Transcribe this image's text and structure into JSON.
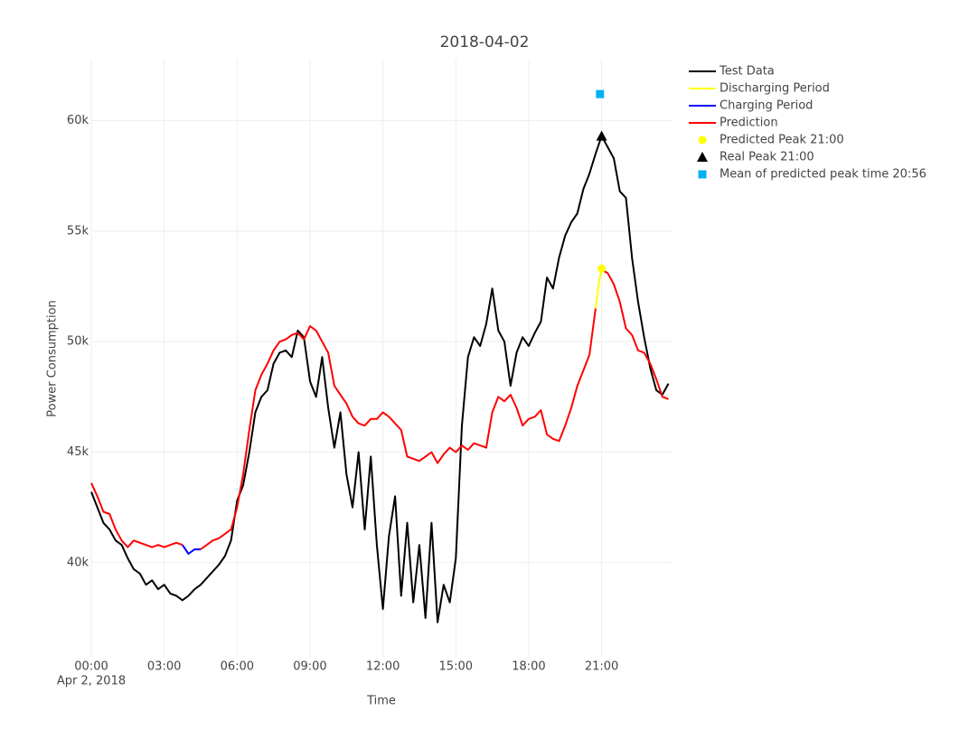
{
  "chart_data": {
    "type": "line",
    "title": "2018-04-02",
    "x_label": "Time",
    "y_label": "Power Consumption",
    "x_date_label": "Apr 2, 2018",
    "xlim": [
      "00:00",
      "23:55"
    ],
    "xticks": [
      "00:00",
      "03:00",
      "06:00",
      "09:00",
      "12:00",
      "15:00",
      "18:00",
      "21:00"
    ],
    "ylim": [
      35700,
      62800
    ],
    "yticks": [
      {
        "value": 40000,
        "label": "40k"
      },
      {
        "value": 45000,
        "label": "45k"
      },
      {
        "value": 50000,
        "label": "50k"
      },
      {
        "value": 55000,
        "label": "55k"
      },
      {
        "value": 60000,
        "label": "60k"
      }
    ],
    "grid": true,
    "legend": "top-right",
    "series": [
      {
        "name": "Test Data",
        "color": "#000000",
        "mode": "lines",
        "x": [
          "00:00",
          "00:15",
          "00:30",
          "00:45",
          "01:00",
          "01:15",
          "01:30",
          "01:45",
          "02:00",
          "02:15",
          "02:30",
          "02:45",
          "03:00",
          "03:15",
          "03:30",
          "03:45",
          "04:00",
          "04:15",
          "04:30",
          "04:45",
          "05:00",
          "05:15",
          "05:30",
          "05:45",
          "06:00",
          "06:15",
          "06:30",
          "06:45",
          "07:00",
          "07:15",
          "07:30",
          "07:45",
          "08:00",
          "08:15",
          "08:30",
          "08:45",
          "09:00",
          "09:15",
          "09:30",
          "09:45",
          "10:00",
          "10:15",
          "10:30",
          "10:45",
          "11:00",
          "11:15",
          "11:30",
          "11:45",
          "12:00",
          "12:15",
          "12:30",
          "12:45",
          "13:00",
          "13:15",
          "13:30",
          "13:45",
          "14:00",
          "14:15",
          "14:30",
          "14:45",
          "15:00",
          "15:15",
          "15:30",
          "15:45",
          "16:00",
          "16:15",
          "16:30",
          "16:45",
          "17:00",
          "17:15",
          "17:30",
          "17:45",
          "18:00",
          "18:15",
          "18:30",
          "18:45",
          "19:00",
          "19:15",
          "19:30",
          "19:45",
          "20:00",
          "20:15",
          "20:30",
          "20:45",
          "21:00",
          "21:15",
          "21:30",
          "21:45",
          "22:00",
          "22:15",
          "22:30",
          "22:45",
          "23:00",
          "23:15",
          "23:30",
          "23:45"
        ],
        "values": [
          43200,
          42500,
          41800,
          41500,
          41000,
          40800,
          40200,
          39700,
          39500,
          39000,
          39200,
          38800,
          39000,
          38600,
          38500,
          38300,
          38500,
          38800,
          39000,
          39300,
          39600,
          39900,
          40300,
          41000,
          42800,
          43500,
          45000,
          46800,
          47500,
          47800,
          49000,
          49500,
          49600,
          49300,
          50500,
          50200,
          48200,
          47500,
          49300,
          47000,
          45200,
          46800,
          44000,
          42500,
          45000,
          41500,
          44800,
          40800,
          37900,
          41200,
          43000,
          38500,
          41800,
          38200,
          40800,
          37500,
          41800,
          37300,
          39000,
          38200,
          40200,
          46200,
          49300,
          50200,
          49800,
          50800,
          52400,
          50500,
          50000,
          48000,
          49500,
          50200,
          49800,
          50400,
          50900,
          52900,
          52400,
          53800,
          54800,
          55400,
          55800,
          56900,
          57600,
          58500,
          59300,
          58800,
          58300,
          56800,
          56500,
          53800,
          51800,
          50200,
          48800,
          47800,
          47600,
          48100
        ]
      },
      {
        "name": "Discharging Period",
        "color": "#ffff00",
        "mode": "lines",
        "x": [
          "20:45",
          "20:52",
          "21:00",
          "21:05"
        ],
        "values": [
          51500,
          52500,
          53300,
          53200
        ]
      },
      {
        "name": "Charging Period",
        "color": "#0000ff",
        "mode": "lines",
        "x": [
          "03:45",
          "04:00",
          "04:15",
          "04:30"
        ],
        "values": [
          40800,
          40400,
          40600,
          40600
        ]
      },
      {
        "name": "Prediction",
        "color": "#ff0000",
        "mode": "lines",
        "x": [
          "00:00",
          "00:15",
          "00:30",
          "00:45",
          "01:00",
          "01:15",
          "01:30",
          "01:45",
          "02:00",
          "02:15",
          "02:30",
          "02:45",
          "03:00",
          "03:15",
          "03:30",
          "03:45",
          "04:00",
          "04:30",
          "04:45",
          "05:00",
          "05:15",
          "05:30",
          "05:45",
          "06:00",
          "06:15",
          "06:30",
          "06:45",
          "07:00",
          "07:15",
          "07:30",
          "07:45",
          "08:00",
          "08:15",
          "08:30",
          "08:45",
          "09:00",
          "09:15",
          "09:30",
          "09:45",
          "10:00",
          "10:15",
          "10:30",
          "10:45",
          "11:00",
          "11:15",
          "11:30",
          "11:45",
          "12:00",
          "12:15",
          "12:30",
          "12:45",
          "13:00",
          "13:15",
          "13:30",
          "13:45",
          "14:00",
          "14:15",
          "14:30",
          "14:45",
          "15:00",
          "15:15",
          "15:30",
          "15:45",
          "16:00",
          "16:15",
          "16:30",
          "16:45",
          "17:00",
          "17:15",
          "17:30",
          "17:45",
          "18:00",
          "18:15",
          "18:30",
          "18:45",
          "19:00",
          "19:15",
          "19:30",
          "19:45",
          "20:00",
          "20:15",
          "20:30",
          "20:45",
          "21:00",
          "21:05",
          "21:15",
          "21:30",
          "21:45",
          "22:00",
          "22:15",
          "22:30",
          "22:45",
          "23:00",
          "23:15",
          "23:30",
          "23:45"
        ],
        "values": [
          43600,
          43000,
          42300,
          42200,
          41500,
          41000,
          40700,
          41000,
          40900,
          40800,
          40700,
          40800,
          40700,
          40800,
          40900,
          40800,
          null,
          40600,
          40800,
          41000,
          41100,
          41300,
          41500,
          42500,
          44000,
          46000,
          47800,
          48500,
          49000,
          49600,
          50000,
          50100,
          50300,
          50400,
          50100,
          50700,
          50500,
          50000,
          49500,
          48000,
          47600,
          47200,
          46600,
          46300,
          46200,
          46500,
          46500,
          46800,
          46600,
          46300,
          46000,
          44800,
          44700,
          44600,
          44800,
          45000,
          44500,
          44900,
          45200,
          45000,
          45300,
          45100,
          45400,
          45300,
          45200,
          46800,
          47500,
          47300,
          47600,
          47000,
          46200,
          46500,
          46600,
          46900,
          45800,
          45600,
          45500,
          46200,
          47000,
          48000,
          48700,
          49400,
          51500,
          null,
          53200,
          53100,
          52600,
          51800,
          50600,
          50300,
          49600,
          49500,
          49000,
          48300,
          47500,
          47400
        ]
      },
      {
        "name": "Predicted Peak 21:00",
        "color": "#ffff00",
        "mode": "markers",
        "symbol": "circle",
        "x": [
          "21:00"
        ],
        "values": [
          53300
        ]
      },
      {
        "name": "Real Peak 21:00",
        "color": "#000000",
        "mode": "markers",
        "symbol": "triangle-up",
        "x": [
          "21:00"
        ],
        "values": [
          59300
        ]
      },
      {
        "name": "Mean of predicted peak time 20:56",
        "color": "#00b0f0",
        "mode": "markers",
        "symbol": "square",
        "x": [
          "20:56"
        ],
        "values": [
          61200
        ]
      }
    ]
  }
}
